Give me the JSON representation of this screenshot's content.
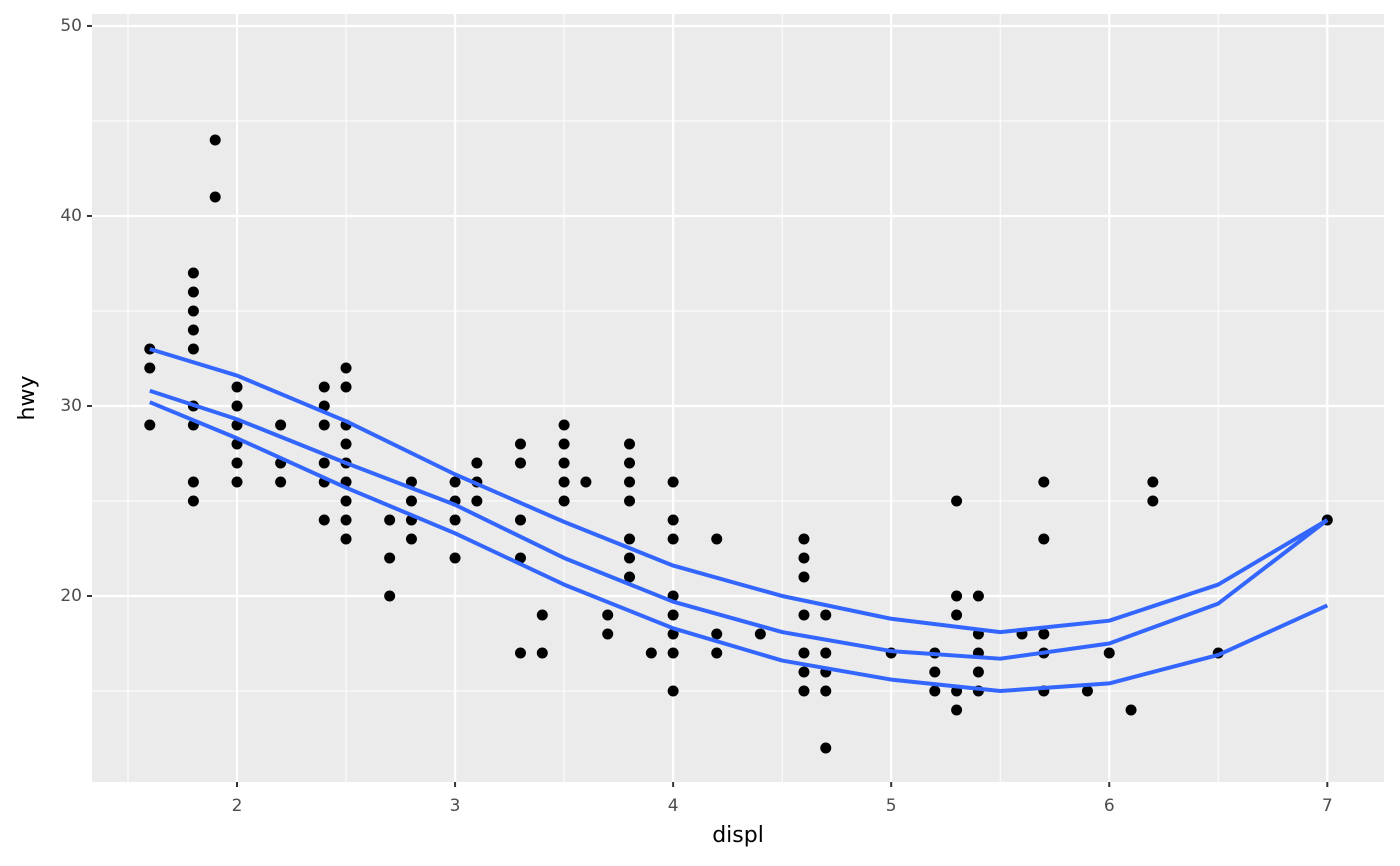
{
  "chart_data": {
    "type": "scatter",
    "x_label": "displ",
    "y_label": "hwy",
    "xlim": [
      1.335,
      7.26
    ],
    "ylim": [
      10.21,
      50.63
    ],
    "xticks": [
      2,
      3,
      4,
      5,
      6,
      7
    ],
    "yticks": [
      20,
      30,
      40,
      50
    ],
    "x_minor_ticks": [
      1.5,
      2.5,
      3.5,
      4.5,
      5.5,
      6.5
    ],
    "y_minor_ticks": [
      15,
      25,
      35,
      45
    ],
    "grid": true,
    "points": {
      "color": "#000000",
      "x": [
        1.6,
        1.6,
        1.6,
        1.8,
        1.8,
        1.8,
        1.8,
        1.8,
        1.8,
        1.8,
        1.8,
        1.8,
        1.9,
        1.9,
        2,
        2,
        2,
        2,
        2,
        2,
        2.2,
        2.2,
        2.2,
        2.4,
        2.4,
        2.4,
        2.4,
        2.4,
        2.4,
        2.5,
        2.5,
        2.5,
        2.5,
        2.5,
        2.5,
        2.5,
        2.5,
        2.5,
        2.7,
        2.7,
        2.7,
        2.8,
        2.8,
        2.8,
        2.8,
        3,
        3,
        3,
        3,
        3.1,
        3.1,
        3.1,
        3.3,
        3.3,
        3.3,
        3.3,
        3.3,
        3.4,
        3.4,
        3.5,
        3.5,
        3.5,
        3.5,
        3.5,
        3.6,
        3.7,
        3.7,
        3.8,
        3.8,
        3.8,
        3.8,
        3.8,
        3.8,
        3.8,
        3.9,
        4,
        4,
        4,
        4,
        4,
        4,
        4,
        4,
        4.2,
        4.2,
        4.2,
        4.4,
        4.6,
        4.6,
        4.6,
        4.6,
        4.6,
        4.6,
        4.6,
        4.7,
        4.7,
        4.7,
        4.7,
        4.7,
        5,
        5.2,
        5.2,
        5.2,
        5.3,
        5.3,
        5.3,
        5.3,
        5.3,
        5.4,
        5.4,
        5.4,
        5.4,
        5.4,
        5.6,
        5.7,
        5.7,
        5.7,
        5.7,
        5.7,
        5.9,
        6,
        6.1,
        6.2,
        6.2,
        6.5,
        7
      ],
      "y": [
        33,
        32,
        29,
        37,
        36,
        35,
        34,
        33,
        30,
        29,
        26,
        25,
        44,
        41,
        31,
        30,
        29,
        28,
        27,
        26,
        29,
        27,
        26,
        31,
        30,
        29,
        27,
        26,
        24,
        32,
        31,
        29,
        28,
        27,
        26,
        25,
        24,
        23,
        24,
        22,
        20,
        26,
        25,
        24,
        23,
        26,
        25,
        24,
        22,
        27,
        26,
        25,
        28,
        27,
        24,
        22,
        17,
        19,
        17,
        29,
        28,
        27,
        26,
        25,
        26,
        19,
        18,
        28,
        27,
        26,
        25,
        23,
        22,
        21,
        17,
        26,
        24,
        23,
        20,
        19,
        18,
        17,
        15,
        23,
        18,
        17,
        18,
        23,
        22,
        21,
        19,
        17,
        16,
        15,
        19,
        17,
        16,
        15,
        12,
        17,
        17,
        16,
        15,
        25,
        20,
        19,
        15,
        14,
        20,
        18,
        17,
        16,
        15,
        18,
        26,
        23,
        18,
        17,
        15,
        15,
        17,
        14,
        26,
        25,
        17,
        24
      ]
    },
    "lines": [
      {
        "color": "#3366FF",
        "x": [
          1.6,
          2,
          2.5,
          3,
          3.5,
          4,
          4.5,
          5,
          5.5,
          6,
          6.5,
          7
        ],
        "y": [
          33,
          31.6,
          29.2,
          26.4,
          23.9,
          21.6,
          20,
          18.8,
          18.1,
          18.7,
          20.6,
          24
        ]
      },
      {
        "color": "#3366FF",
        "x": [
          1.6,
          2,
          2.5,
          3,
          3.5,
          4,
          4.5,
          5,
          5.5,
          6,
          6.5,
          7
        ],
        "y": [
          30.8,
          29.3,
          27,
          24.8,
          22,
          19.7,
          18.1,
          17.1,
          16.7,
          17.5,
          19.6,
          24
        ]
      },
      {
        "color": "#3366FF",
        "x": [
          1.6,
          2,
          2.5,
          3,
          3.5,
          4,
          4.5,
          5,
          5.5,
          6,
          6.5,
          7
        ],
        "y": [
          30.2,
          28.3,
          25.7,
          23.3,
          20.6,
          18.3,
          16.6,
          15.6,
          15,
          15.4,
          16.9,
          19.5
        ]
      }
    ]
  }
}
